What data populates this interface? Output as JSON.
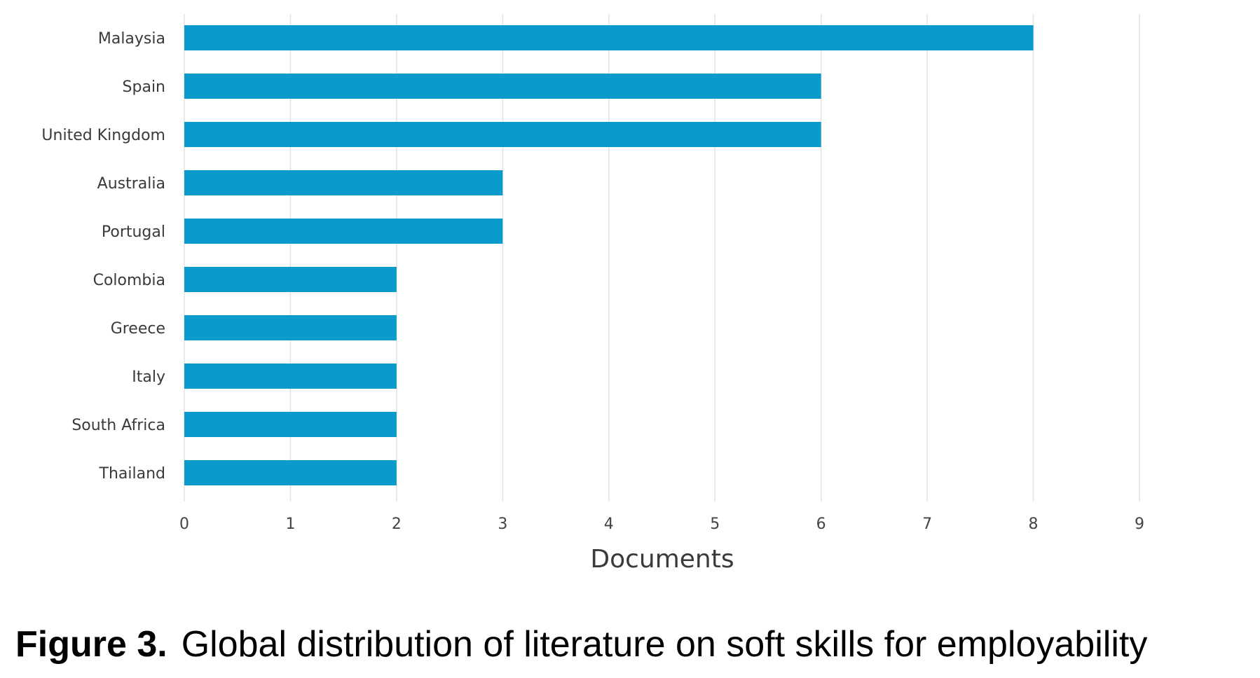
{
  "caption": {
    "label": "Figure 3.",
    "text": "Global distribution of literature on soft skills for employability"
  },
  "chart_data": {
    "type": "bar",
    "orientation": "horizontal",
    "categories": [
      "Malaysia",
      "Spain",
      "United Kingdom",
      "Australia",
      "Portugal",
      "Colombia",
      "Greece",
      "Italy",
      "South Africa",
      "Thailand"
    ],
    "values": [
      8,
      6,
      6,
      3,
      3,
      2,
      2,
      2,
      2,
      2
    ],
    "xlabel": "Documents",
    "ylabel": "",
    "xlim": [
      0,
      9
    ],
    "xticks": [
      "0",
      "1",
      "2",
      "3",
      "4",
      "5",
      "6",
      "7",
      "8",
      "9"
    ],
    "grid": "vertical",
    "bar_color": "#0a9acb"
  }
}
